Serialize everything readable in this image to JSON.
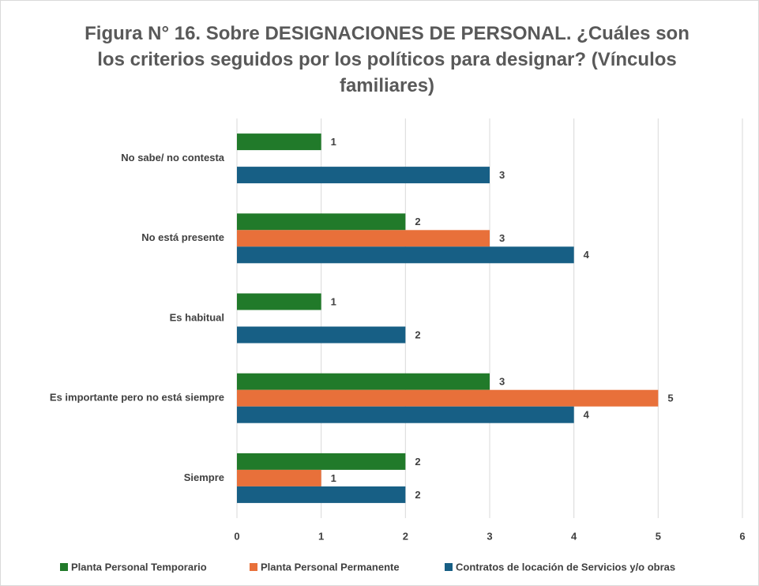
{
  "chart_data": {
    "type": "bar",
    "orientation": "horizontal",
    "title": "Figura N° 16. Sobre DESIGNACIONES DE PERSONAL. ¿Cuáles son los criterios seguidos por los políticos para designar? (Vínculos familiares)",
    "categories": [
      "No sabe/ no contesta",
      "No está presente",
      "Es habitual",
      "Es importante pero no está siempre",
      "Siempre"
    ],
    "series": [
      {
        "name": "Planta Personal Temporario",
        "color": "#217a2a",
        "values": [
          1,
          2,
          1,
          3,
          2
        ]
      },
      {
        "name": "Planta Personal Permanente",
        "color": "#e8703a",
        "values": [
          null,
          3,
          null,
          5,
          1
        ]
      },
      {
        "name": "Contratos de locación de Servicios y/o obras",
        "color": "#175f85",
        "values": [
          3,
          4,
          2,
          4,
          2
        ]
      }
    ],
    "xlim": [
      0,
      6
    ],
    "xticks": [
      0,
      1,
      2,
      3,
      4,
      5,
      6
    ],
    "grid": true,
    "legend": "bottom"
  }
}
